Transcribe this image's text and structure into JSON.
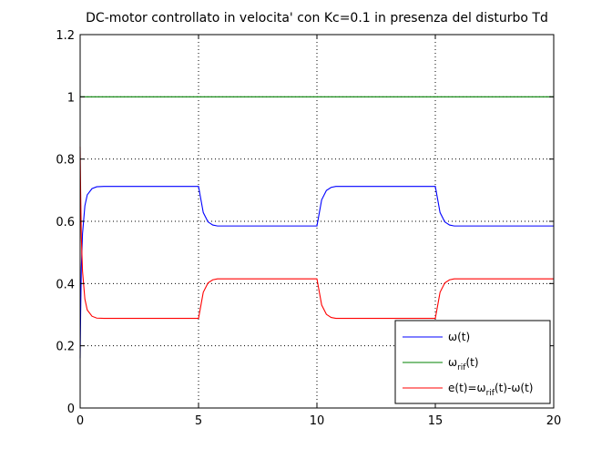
{
  "chart_data": {
    "type": "line",
    "title": "DC-motor controllato in velocita' con Kc=0.1 in presenza del disturbo Td",
    "xlabel": "",
    "ylabel": "",
    "xlim": [
      0,
      20
    ],
    "ylim": [
      0,
      1.2
    ],
    "x_ticks": [
      0,
      5,
      10,
      15,
      20
    ],
    "y_ticks": [
      0,
      0.2,
      0.4,
      0.6,
      0.8,
      1,
      1.2
    ],
    "x_tick_labels": [
      "0",
      "5",
      "10",
      "15",
      "20"
    ],
    "y_tick_labels": [
      "0",
      "0.2",
      "0.4",
      "0.6",
      "0.8",
      "1",
      "1.2"
    ],
    "grid": true,
    "legend_position": "bottom-right",
    "series": [
      {
        "name": "ω(t)",
        "color": "#0000ff",
        "x": [
          0,
          0.02,
          0.05,
          0.1,
          0.2,
          0.3,
          0.5,
          0.7,
          1.0,
          5.0,
          5.1,
          5.2,
          5.4,
          5.6,
          5.8,
          6.0,
          10.0,
          10.1,
          10.2,
          10.4,
          10.6,
          10.8,
          11.0,
          15.0,
          15.1,
          15.2,
          15.4,
          15.6,
          15.8,
          16.0,
          20.0
        ],
        "y": [
          0.16,
          0.3,
          0.45,
          0.56,
          0.65,
          0.685,
          0.705,
          0.711,
          0.712,
          0.712,
          0.67,
          0.628,
          0.598,
          0.588,
          0.585,
          0.585,
          0.585,
          0.627,
          0.669,
          0.699,
          0.709,
          0.712,
          0.712,
          0.712,
          0.67,
          0.628,
          0.598,
          0.588,
          0.585,
          0.585,
          0.585
        ]
      },
      {
        "name": "ω_rif(t)",
        "color": "#008000",
        "x": [
          0,
          20
        ],
        "y": [
          1.0,
          1.0
        ]
      },
      {
        "name": "e(t)=ω_rif(t)-ω(t)",
        "color": "#ff0000",
        "x": [
          0,
          0.02,
          0.05,
          0.1,
          0.2,
          0.3,
          0.5,
          0.7,
          1.0,
          5.0,
          5.1,
          5.2,
          5.4,
          5.6,
          5.8,
          6.0,
          10.0,
          10.1,
          10.2,
          10.4,
          10.6,
          10.8,
          11.0,
          15.0,
          15.1,
          15.2,
          15.4,
          15.6,
          15.8,
          16.0,
          20.0
        ],
        "y": [
          0.84,
          0.7,
          0.55,
          0.44,
          0.35,
          0.315,
          0.295,
          0.289,
          0.288,
          0.288,
          0.33,
          0.372,
          0.402,
          0.412,
          0.415,
          0.415,
          0.415,
          0.373,
          0.331,
          0.301,
          0.291,
          0.288,
          0.288,
          0.288,
          0.33,
          0.372,
          0.402,
          0.412,
          0.415,
          0.415,
          0.415
        ]
      }
    ],
    "legend": [
      {
        "base": "ω",
        "sub": "",
        "tail": "(t)",
        "color": "#0000ff"
      },
      {
        "base": "ω",
        "sub": "rif",
        "tail": "(t)",
        "color": "#008000"
      },
      {
        "base": "e(t)=ω",
        "sub": "rif",
        "tail": "(t)-ω(t)",
        "color": "#ff0000"
      }
    ]
  }
}
